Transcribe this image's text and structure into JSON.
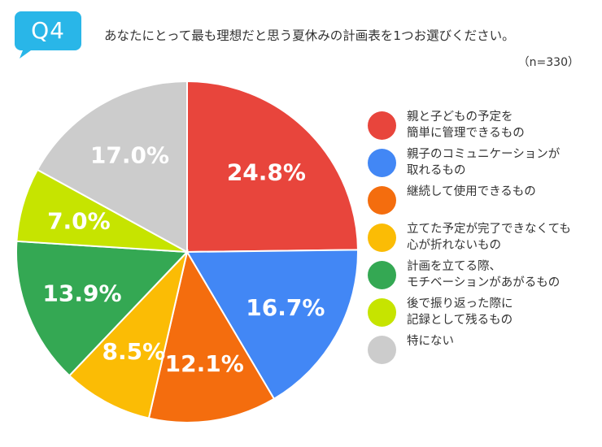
{
  "header": {
    "question_number": "Q4",
    "question": "あなたにとって最も理想だと思う夏休みの計画表を1つお選びください。",
    "sample": "（n=330）",
    "bubble_color": "#29b6e8"
  },
  "chart_data": {
    "type": "pie",
    "title": "あなたにとって最も理想だと思う夏休みの計画表を1つお選びください。",
    "unit": "%",
    "slices": [
      {
        "label": "親と子どもの予定を\n簡単に管理できるもの",
        "value": 24.8,
        "display": "24.8%",
        "color": "#e8453c"
      },
      {
        "label": "親子のコミュニケーションが\n取れるもの",
        "value": 16.7,
        "display": "16.7%",
        "color": "#4287f5"
      },
      {
        "label": "継続して使用できるもの",
        "value": 12.1,
        "display": "12.1%",
        "color": "#f46d0e"
      },
      {
        "label": "立てた予定が完了できなくても\n心が折れないもの",
        "value": 8.5,
        "display": "8.5%",
        "color": "#fbbc05"
      },
      {
        "label": "計画を立てる際、\nモチベーションがあがるもの",
        "value": 13.9,
        "display": "13.9%",
        "color": "#34a853"
      },
      {
        "label": "後で振り返った際に\n記録として残るもの",
        "value": 7.0,
        "display": "7.0%",
        "color": "#c6e400"
      },
      {
        "label": "特にない",
        "value": 17.0,
        "display": "17.0%",
        "color": "#cccccc"
      }
    ]
  }
}
